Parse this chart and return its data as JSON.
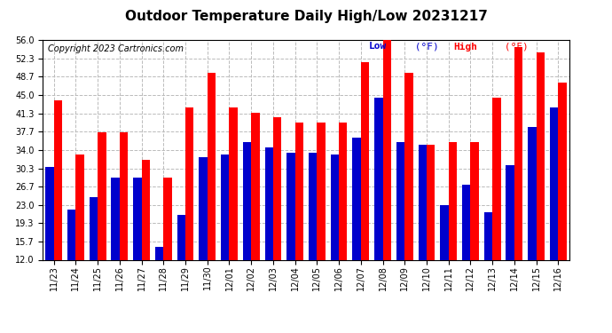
{
  "title": "Outdoor Temperature Daily High/Low 20231217",
  "copyright": "Copyright 2023 Cartronics.com",
  "dates": [
    "11/23",
    "11/24",
    "11/25",
    "11/26",
    "11/27",
    "11/28",
    "11/29",
    "11/30",
    "12/01",
    "12/02",
    "12/03",
    "12/04",
    "12/05",
    "12/06",
    "12/07",
    "12/08",
    "12/09",
    "12/10",
    "12/11",
    "12/12",
    "12/13",
    "12/14",
    "12/15",
    "12/16"
  ],
  "highs": [
    44.0,
    33.0,
    37.5,
    37.5,
    32.0,
    28.5,
    42.5,
    49.5,
    42.5,
    41.5,
    40.5,
    39.5,
    39.5,
    39.5,
    51.5,
    56.0,
    49.5,
    35.0,
    35.5,
    35.5,
    44.5,
    54.5,
    53.5,
    47.5
  ],
  "lows": [
    30.5,
    22.0,
    24.5,
    28.5,
    28.5,
    14.5,
    21.0,
    32.5,
    33.0,
    35.5,
    34.5,
    33.5,
    33.5,
    33.0,
    36.5,
    44.5,
    35.5,
    35.0,
    23.0,
    27.0,
    21.5,
    31.0,
    38.5,
    42.5
  ],
  "ymin": 12.0,
  "ymax": 56.0,
  "yticks": [
    12.0,
    15.7,
    19.3,
    23.0,
    26.7,
    30.3,
    34.0,
    37.7,
    41.3,
    45.0,
    48.7,
    52.3,
    56.0
  ],
  "bar_width": 0.38,
  "high_color": "#ff0000",
  "low_color": "#0000cc",
  "bg_color": "#ffffff",
  "grid_color": "#bbbbbb",
  "title_fontsize": 11,
  "copyright_fontsize": 7,
  "tick_fontsize": 7,
  "legend_fontsize": 8
}
